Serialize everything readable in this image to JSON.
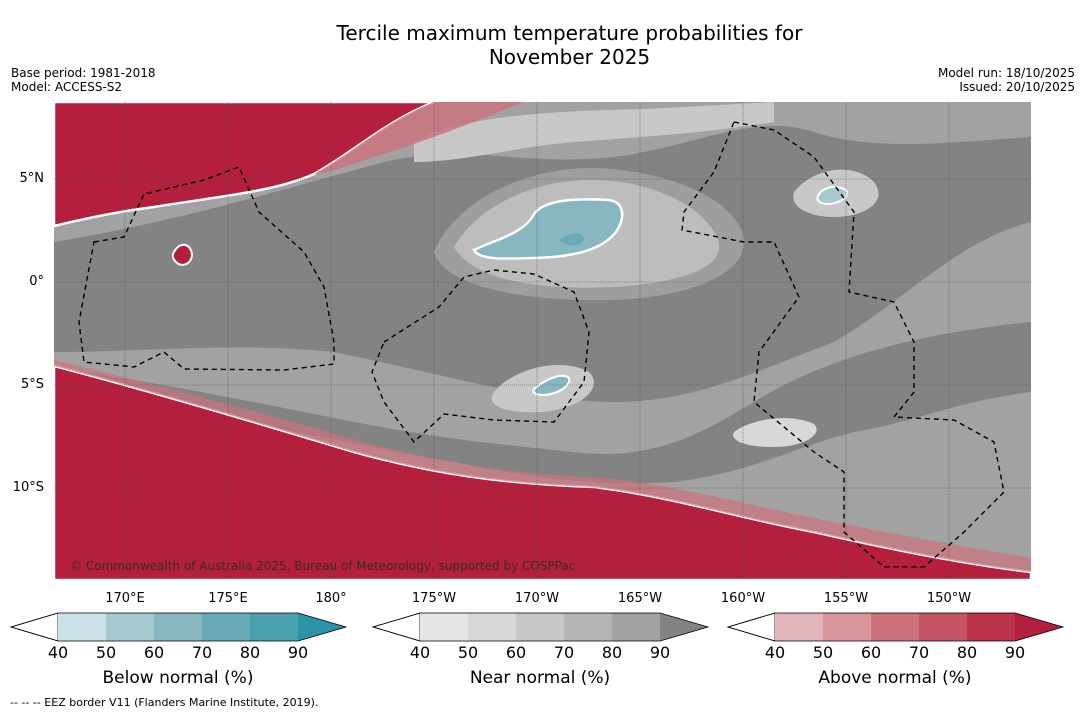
{
  "title_line1": "Tercile maximum temperature probabilities for",
  "title_line2": "November 2025",
  "base_period": "Base period: 1981-2018",
  "model": "Model: ACCESS-S2",
  "model_run": "Model run: 18/10/2025",
  "issued": "Issued: 20/10/2025",
  "copyright": "© Commonwealth of Australia 2025, Bureau of Meteorology, supported by COSPPac",
  "lat_labels": [
    "5°N",
    "0°",
    "5°S",
    "10°S"
  ],
  "lon_labels": [
    "170°E",
    "175°E",
    "180°",
    "175°W",
    "170°W",
    "165°W",
    "160°W",
    "155°W",
    "150°W"
  ],
  "colorbars": [
    {
      "label": "Below normal (%)",
      "ticks": [
        "40",
        "50",
        "60",
        "70",
        "80",
        "90"
      ],
      "colors": [
        "#c9e1e7",
        "#a6c8cf",
        "#89b7c1",
        "#69aab8",
        "#4aa0af",
        "#2d93a6"
      ]
    },
    {
      "label": "Near normal (%)",
      "ticks": [
        "40",
        "50",
        "60",
        "70",
        "80",
        "90"
      ],
      "colors": [
        "#e6e6e6",
        "#d8d8d8",
        "#c8c8c8",
        "#b4b4b4",
        "#a2a2a2",
        "#838383"
      ]
    },
    {
      "label": "Above normal (%)",
      "ticks": [
        "40",
        "50",
        "60",
        "70",
        "80",
        "90"
      ],
      "colors": [
        "#e2b6bc",
        "#d8959c",
        "#cd727c",
        "#c55566",
        "#bb3449",
        "#b31f3c"
      ]
    }
  ],
  "footer_note": "--  --  -- EEZ border V11 (Flanders Marine Institute, 2019)."
}
